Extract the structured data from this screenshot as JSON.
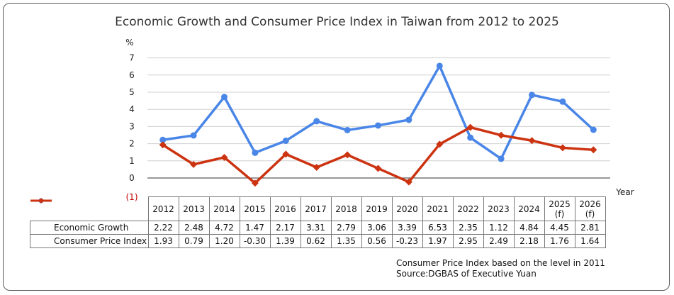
{
  "chart_data": {
    "type": "line",
    "title": "Economic Growth and Consumer Price Index in Taiwan from 2012 to 2025",
    "ylabel": "%",
    "xlabel": "Year",
    "ylim": [
      -1,
      7
    ],
    "y_ticks": [
      "7",
      "6",
      "5",
      "4",
      "3",
      "2",
      "1",
      "0"
    ],
    "y_negative_tick": "(1)",
    "grid": true,
    "categories": [
      "2012",
      "2013",
      "2014",
      "2015",
      "2016",
      "2017",
      "2018",
      "2019",
      "2020",
      "2021",
      "2022",
      "2023",
      "2024",
      "2025",
      "2026"
    ],
    "category_labels": [
      "2012",
      "2013",
      "2014",
      "2015",
      "2016",
      "2017",
      "2018",
      "2019",
      "2020",
      "2021",
      "2022",
      "2023",
      "2024",
      "2025\n(f)",
      "2026\n(f)"
    ],
    "series": [
      {
        "name": "Economic Growth",
        "color": "#4a86e8",
        "marker": "circle",
        "values": [
          2.22,
          2.48,
          4.72,
          1.47,
          2.17,
          3.31,
          2.79,
          3.06,
          3.39,
          6.53,
          2.35,
          1.12,
          4.84,
          4.45,
          2.81
        ],
        "value_labels": [
          "2.22",
          "2.48",
          "4.72",
          "1.47",
          "2.17",
          "3.31",
          "2.79",
          "3.06",
          "3.39",
          "6.53",
          "2.35",
          "1.12",
          "4.84",
          "4.45",
          "2.81"
        ]
      },
      {
        "name": "Consumer Price Index",
        "color": "#cc3311",
        "marker": "diamond",
        "values": [
          1.93,
          0.79,
          1.2,
          -0.3,
          1.39,
          0.62,
          1.35,
          0.56,
          -0.23,
          1.97,
          2.95,
          2.49,
          2.18,
          1.76,
          1.64
        ],
        "value_labels": [
          "1.93",
          "0.79",
          "1.20",
          "-0.30",
          "1.39",
          "0.62",
          "1.35",
          "0.56",
          "-0.23",
          "1.97",
          "2.95",
          "2.49",
          "2.18",
          "1.76",
          "1.64"
        ]
      }
    ],
    "notes": [
      "Consumer Price Index based on the level in 2011",
      "Source:DGBAS of Executive Yuan"
    ]
  }
}
